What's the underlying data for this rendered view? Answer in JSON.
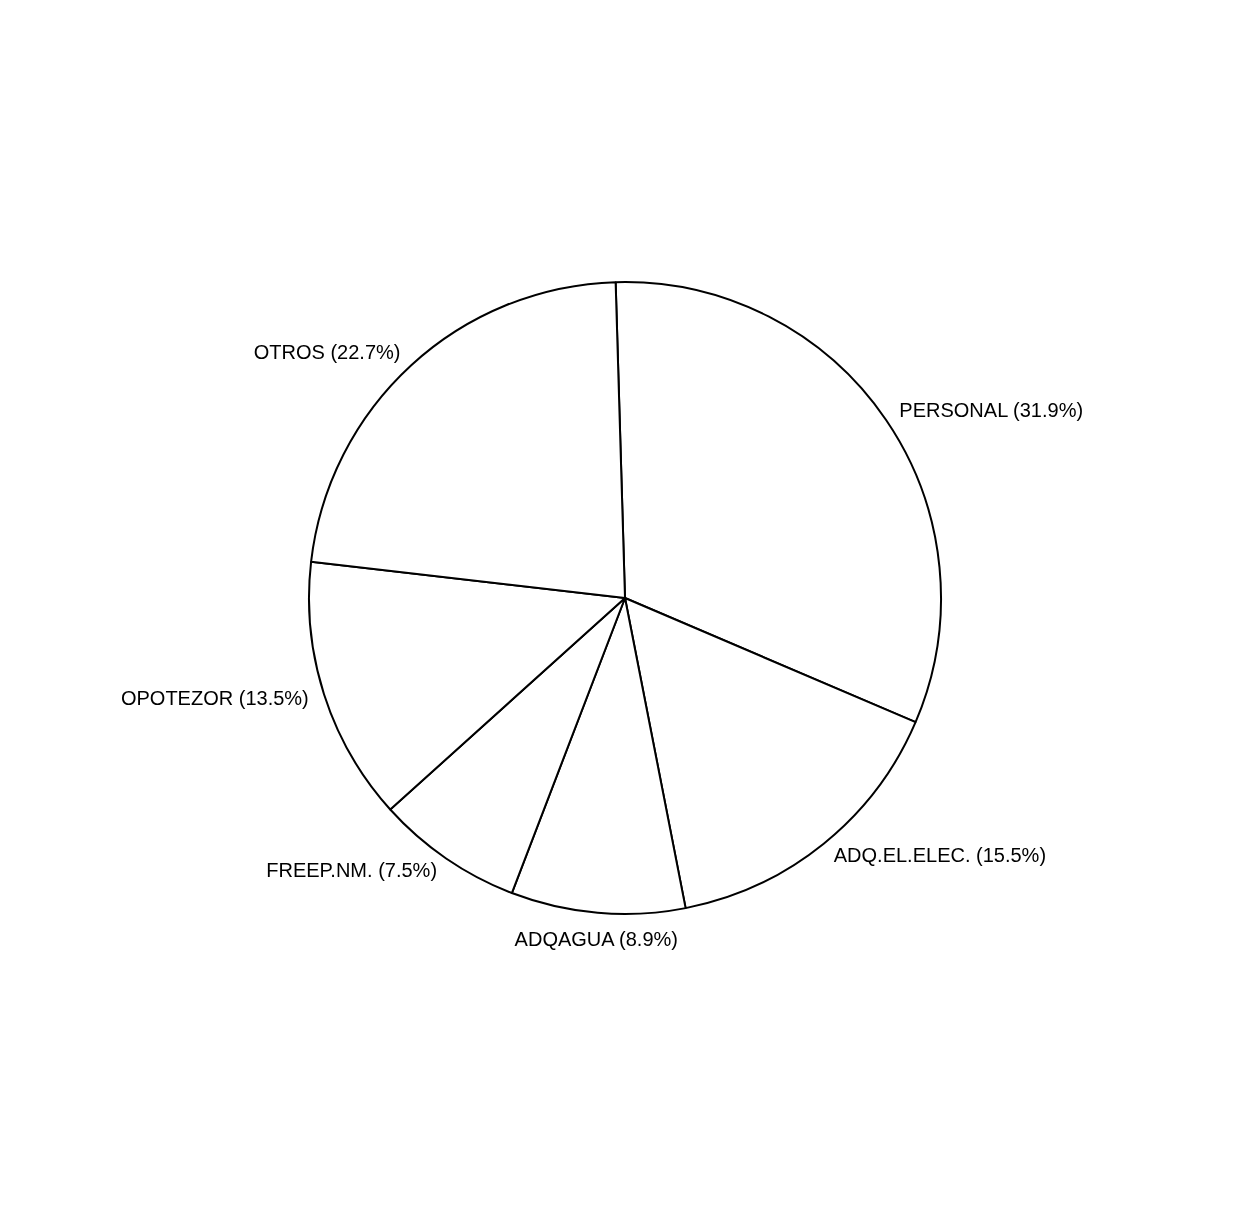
{
  "chart_data": {
    "type": "pie",
    "categories": [
      "PERSONAL (31.9%)",
      "ADQ.EL.ELEC. (15.5%)",
      "ADQAGUA (8.9%)",
      "FREEP.NM. (7.5%)",
      "OPOTEZOR (13.5%)",
      "OTROS (22.7%)"
    ],
    "values": [
      31.9,
      15.5,
      8.9,
      7.5,
      13.5,
      22.7
    ],
    "colors": [
      "#ffffff",
      "#ffffff",
      "#ffffff",
      "#ffffff",
      "#ffffff",
      "#ffffff"
    ],
    "legend": false
  }
}
